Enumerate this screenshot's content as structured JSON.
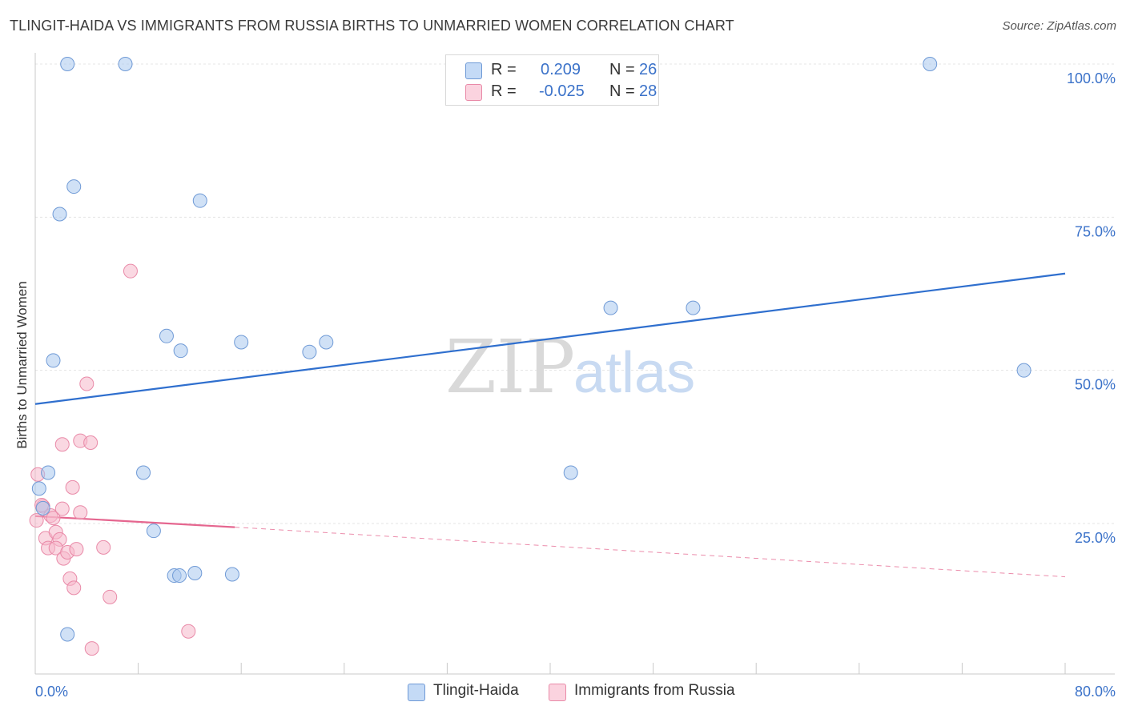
{
  "title": "TLINGIT-HAIDA VS IMMIGRANTS FROM RUSSIA BIRTHS TO UNMARRIED WOMEN CORRELATION CHART",
  "source": "Source: ZipAtlas.com",
  "watermark": {
    "zip": "ZIP",
    "atlas": "atlas"
  },
  "legend_top": {
    "rows": [
      {
        "r_label": "R =",
        "r_value": "0.209",
        "n_label": "N =",
        "n_value": "26",
        "color": "#aac8ef"
      },
      {
        "r_label": "R =",
        "r_value": "-0.025",
        "n_label": "N =",
        "n_value": "28",
        "color": "#f6b8cb"
      }
    ]
  },
  "legend_bottom": {
    "items": [
      {
        "label": "Tlingit-Haida",
        "color": "#aac8ef"
      },
      {
        "label": "Immigrants from Russia",
        "color": "#f6b8cb"
      }
    ]
  },
  "chart_data": {
    "type": "scatter",
    "ylabel": "Births to Unmarried Women",
    "xlim": [
      0,
      80
    ],
    "ylim": [
      0,
      105
    ],
    "x_tick_labels": [
      "0.0%",
      "80.0%"
    ],
    "y_tick_labels": [
      "25.0%",
      "50.0%",
      "75.0%",
      "100.0%"
    ],
    "y_ticks": [
      25,
      50,
      75,
      100
    ],
    "grid": true,
    "colors": {
      "blue_fill": "#aac8ef",
      "blue_stroke": "#6f9ad6",
      "blue_line": "#2f6fce",
      "pink_fill": "#f6b8cb",
      "pink_stroke": "#e98aa8",
      "pink_line": "#e5668f",
      "axis_text": "#3b72c9"
    },
    "series": [
      {
        "name": "Tlingit-Haida",
        "points": [
          [
            2.5,
            100
          ],
          [
            7.0,
            100
          ],
          [
            69.5,
            100
          ],
          [
            3.0,
            80.0
          ],
          [
            12.8,
            77.7
          ],
          [
            1.9,
            75.5
          ],
          [
            44.7,
            60.2
          ],
          [
            51.1,
            60.2
          ],
          [
            10.2,
            55.6
          ],
          [
            11.3,
            53.2
          ],
          [
            16.0,
            54.6
          ],
          [
            22.6,
            54.6
          ],
          [
            21.3,
            53.0
          ],
          [
            1.4,
            51.6
          ],
          [
            76.8,
            50.0
          ],
          [
            0.3,
            30.7
          ],
          [
            1.0,
            33.3
          ],
          [
            8.4,
            33.3
          ],
          [
            41.6,
            33.3
          ],
          [
            0.6,
            27.5
          ],
          [
            9.2,
            23.8
          ],
          [
            10.8,
            16.5
          ],
          [
            11.2,
            16.5
          ],
          [
            12.4,
            16.9
          ],
          [
            15.3,
            16.7
          ],
          [
            2.5,
            6.9
          ]
        ],
        "trend": {
          "x": [
            0,
            80
          ],
          "y": [
            44.5,
            65.8
          ],
          "style": "solid"
        }
      },
      {
        "name": "Immigrants from Russia",
        "points": [
          [
            0.2,
            33.0
          ],
          [
            0.1,
            25.5
          ],
          [
            0.6,
            27.8
          ],
          [
            1.2,
            26.3
          ],
          [
            1.4,
            25.9
          ],
          [
            0.8,
            22.6
          ],
          [
            1.6,
            23.6
          ],
          [
            1.9,
            22.4
          ],
          [
            1.0,
            21.0
          ],
          [
            1.6,
            21.0
          ],
          [
            2.2,
            19.3
          ],
          [
            2.5,
            20.3
          ],
          [
            3.2,
            20.8
          ],
          [
            2.1,
            27.4
          ],
          [
            3.5,
            26.8
          ],
          [
            2.9,
            30.9
          ],
          [
            2.1,
            37.9
          ],
          [
            3.5,
            38.5
          ],
          [
            4.3,
            38.2
          ],
          [
            4.0,
            47.8
          ],
          [
            7.4,
            66.2
          ],
          [
            5.3,
            21.1
          ],
          [
            2.7,
            16.0
          ],
          [
            3.0,
            14.5
          ],
          [
            5.8,
            13.0
          ],
          [
            11.9,
            7.4
          ],
          [
            4.4,
            4.6
          ],
          [
            0.5,
            28.0
          ]
        ],
        "trend": {
          "x": [
            0,
            15.5
          ],
          "y": [
            26.2,
            24.4
          ],
          "style": "solid"
        },
        "trend_extension": {
          "x": [
            15.5,
            80
          ],
          "y": [
            24.4,
            16.3
          ],
          "style": "dashed"
        }
      }
    ]
  }
}
